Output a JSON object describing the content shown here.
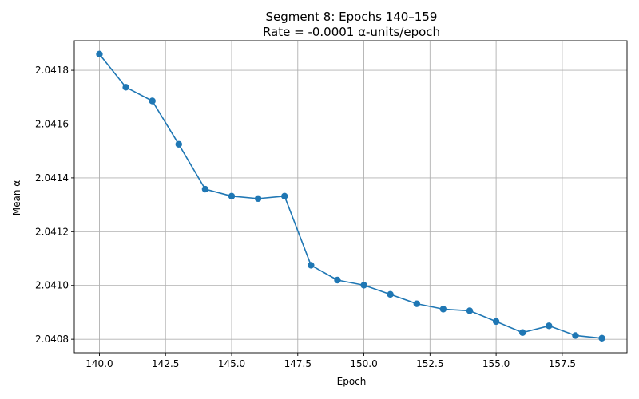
{
  "chart_data": {
    "type": "line",
    "title": "Segment 8: Epochs 140–159",
    "subtitle": "Rate = -0.0001 α-units/epoch",
    "xlabel": "Epoch",
    "ylabel": "Mean α",
    "xlim": [
      139.05,
      159.95
    ],
    "ylim": [
      2.04075,
      2.04191
    ],
    "x_ticks": [
      140.0,
      142.5,
      145.0,
      147.5,
      150.0,
      152.5,
      155.0,
      157.5
    ],
    "x_tick_labels": [
      "140.0",
      "142.5",
      "145.0",
      "147.5",
      "150.0",
      "152.5",
      "155.0",
      "157.5"
    ],
    "y_ticks": [
      2.0408,
      2.041,
      2.0412,
      2.0414,
      2.0416,
      2.0418
    ],
    "y_tick_labels": [
      "2.0408",
      "2.0410",
      "2.0412",
      "2.0414",
      "2.0416",
      "2.0418"
    ],
    "grid": true,
    "color": "#1f77b4",
    "marker": "circle",
    "x": [
      140,
      141,
      142,
      143,
      144,
      145,
      146,
      147,
      148,
      149,
      150,
      151,
      152,
      153,
      154,
      155,
      156,
      157,
      158,
      159
    ],
    "y": [
      2.04186,
      2.041737,
      2.041686,
      2.041525,
      2.041358,
      2.041332,
      2.041323,
      2.041332,
      2.041075,
      2.04102,
      2.041001,
      2.040967,
      2.040932,
      2.040912,
      2.040906,
      2.040866,
      2.040825,
      2.04085,
      2.040814,
      2.040804
    ]
  }
}
